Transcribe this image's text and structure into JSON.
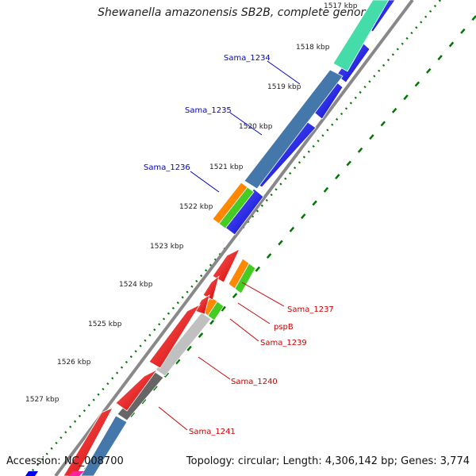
{
  "title": "Shewanella amazonensis SB2B, complete genome",
  "footer": {
    "accession": "Accession: NC_008700",
    "stats": "Topology: circular; Length: 4,306,142 bp; Genes: 3,774"
  },
  "scale": {
    "labels": [
      "1517 kbp",
      "1518 kbp",
      "1519 kbp",
      "1520 kbp",
      "1521 kbp",
      "1522 kbp",
      "1523 kbp",
      "1524 kbp",
      "1525 kbp",
      "1526 kbp",
      "1527 kbp"
    ]
  },
  "gene_labels": {
    "sama1234": "Sama_1234",
    "sama1235": "Sama_1235",
    "sama1236": "Sama_1236",
    "sama1237": "Sama_1237",
    "pspB": "pspB",
    "sama1239": "Sama_1239",
    "sama1240": "Sama_1240",
    "sama1241": "Sama_1241"
  },
  "colors": {
    "forward": "#0000ee",
    "reverse": "#ee0000",
    "cog_teal": "#44ddaa",
    "cog_steel": "#4477aa",
    "cog_orange": "#ff8800",
    "cog_green": "#44cc22",
    "cog_gray": "#aaaaaa",
    "label_blue": "#0000cc",
    "label_red": "#cc0000",
    "backbone": "#888888",
    "ticks": "#007700"
  }
}
